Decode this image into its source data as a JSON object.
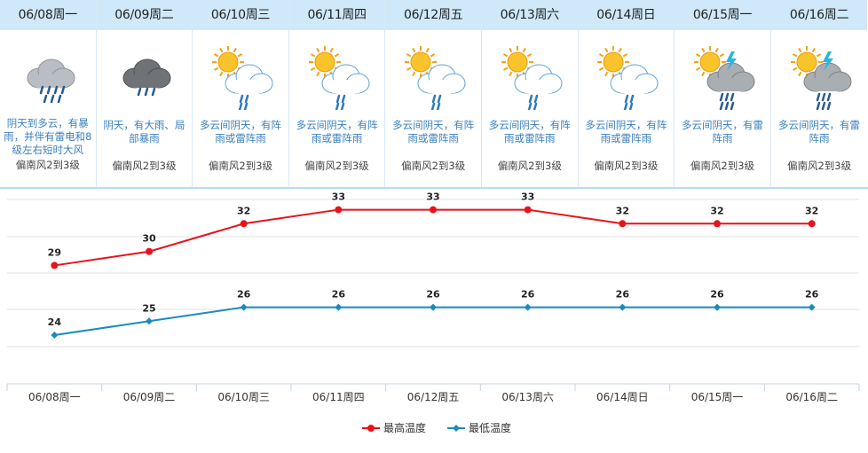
{
  "days": [
    {
      "date": "06/08周一",
      "icon": "heavy-rain-thunder-icon",
      "desc": "阴天到多云，有暴雨，并伴有雷电和8级左右短时大风",
      "wind": "偏南风2到3级"
    },
    {
      "date": "06/09周二",
      "icon": "heavy-storm-cloud-icon",
      "desc": "阴天，有大雨、局部暴雨",
      "wind": "偏南风2到3级"
    },
    {
      "date": "06/10周三",
      "icon": "sun-cloud-shower-icon",
      "desc": "多云间阴天，有阵雨或雷阵雨",
      "wind": "偏南风2到3级"
    },
    {
      "date": "06/11周四",
      "icon": "sun-cloud-shower-icon",
      "desc": "多云间阴天，有阵雨或雷阵雨",
      "wind": "偏南风2到3级"
    },
    {
      "date": "06/12周五",
      "icon": "sun-cloud-shower-icon",
      "desc": "多云间阴天，有阵雨或雷阵雨",
      "wind": "偏南风2到3级"
    },
    {
      "date": "06/13周六",
      "icon": "sun-cloud-shower-icon",
      "desc": "多云间阴天，有阵雨或雷阵雨",
      "wind": "偏南风2到3级"
    },
    {
      "date": "06/14周日",
      "icon": "sun-cloud-shower-icon",
      "desc": "多云间阴天，有阵雨或雷阵雨",
      "wind": "偏南风2到3级"
    },
    {
      "date": "06/15周一",
      "icon": "sun-thunderstorm-icon",
      "desc": "多云间阴天，有雷阵雨",
      "wind": "偏南风2到3级"
    },
    {
      "date": "06/16周二",
      "icon": "sun-thunderstorm-icon",
      "desc": "多云间阴天，有雷阵雨",
      "wind": "偏南风2到3级"
    }
  ],
  "chart_data": {
    "type": "line",
    "categories": [
      "06/08周一",
      "06/09周二",
      "06/10周三",
      "06/11周四",
      "06/12周五",
      "06/13周六",
      "06/14周日",
      "06/15周一",
      "06/16周二"
    ],
    "series": [
      {
        "name": "最高温度",
        "values": [
          29,
          30,
          32,
          33,
          33,
          33,
          32,
          32,
          32
        ],
        "color": "#e8121b",
        "marker": "circle"
      },
      {
        "name": "最低温度",
        "values": [
          24,
          25,
          26,
          26,
          26,
          26,
          26,
          26,
          26
        ],
        "color": "#1a8ac0",
        "marker": "diamond"
      }
    ],
    "ylim": [
      20.5,
      34.5
    ],
    "grid": true,
    "legend": "bottom-center"
  }
}
